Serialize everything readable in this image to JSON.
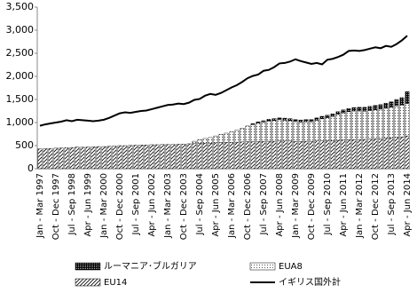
{
  "chart_data": {
    "type": "stacked-bar-line",
    "categories": [
      "Jan - Mar 1997",
      null,
      null,
      "Oct - Dec 1997",
      null,
      null,
      "Jul - Sep 1998",
      null,
      null,
      "Apr - Jun 1999",
      null,
      null,
      "Jan - Mar 2000",
      null,
      null,
      "Oct - Dec 2000",
      null,
      null,
      "Jul - Sep 2001",
      null,
      null,
      "Apr - Jun 2002",
      null,
      null,
      "Jan - Mar 2003",
      null,
      null,
      "Oct - Dec 2003",
      null,
      null,
      "Jul - Sep 2004",
      null,
      null,
      "Apr - Jun 2005",
      null,
      null,
      "Jan - Mar 2006",
      null,
      null,
      "Oct - Dec 2006",
      null,
      null,
      "Jul - Sep 2007",
      null,
      null,
      "Apr - Jun 2008",
      null,
      null,
      "Jan - Mar 2009",
      null,
      null,
      "Oct - Dec 2009",
      null,
      null,
      "Jul - Sep 2010",
      null,
      null,
      "Apr - Jun 2011",
      null,
      null,
      "Jan - Mar 2012",
      null,
      null,
      "Oct - Dec 2012",
      null,
      null,
      "Jul - Sep 2013",
      null,
      null,
      "Apr - Jun 2014"
    ],
    "series": [
      {
        "name": "EU14",
        "kind": "bar",
        "pattern": "hatch",
        "color": "#000000",
        "values": [
          430,
          435,
          440,
          445,
          450,
          455,
          460,
          470,
          465,
          470,
          475,
          480,
          480,
          485,
          490,
          500,
          500,
          505,
          510,
          515,
          515,
          520,
          520,
          525,
          525,
          525,
          530,
          535,
          540,
          545,
          550,
          555,
          555,
          560,
          565,
          570,
          570,
          575,
          580,
          585,
          585,
          590,
          590,
          595,
          595,
          600,
          600,
          600,
          590,
          590,
          595,
          595,
          600,
          600,
          605,
          610,
          615,
          620,
          625,
          630,
          630,
          635,
          640,
          645,
          650,
          660,
          670,
          680,
          690,
          710
        ]
      },
      {
        "name": "EUA8",
        "kind": "bar",
        "pattern": "dots",
        "color": "#000000",
        "values": [
          0,
          0,
          0,
          0,
          0,
          0,
          0,
          0,
          0,
          0,
          0,
          0,
          0,
          0,
          0,
          0,
          0,
          0,
          0,
          0,
          0,
          0,
          0,
          0,
          0,
          0,
          0,
          0,
          0,
          50,
          80,
          100,
          120,
          150,
          180,
          200,
          230,
          260,
          300,
          340,
          370,
          400,
          420,
          440,
          450,
          460,
          450,
          440,
          430,
          420,
          420,
          420,
          450,
          480,
          500,
          520,
          560,
          590,
          610,
          620,
          620,
          610,
          620,
          630,
          640,
          650,
          660,
          680,
          690,
          700
        ]
      },
      {
        "name": "ルーマニア･ブルガリア",
        "kind": "bar",
        "pattern": "checker",
        "color": "#000000",
        "values": [
          0,
          0,
          0,
          0,
          0,
          0,
          0,
          0,
          0,
          0,
          0,
          0,
          0,
          0,
          0,
          0,
          0,
          0,
          0,
          0,
          0,
          0,
          0,
          0,
          0,
          0,
          0,
          0,
          0,
          0,
          0,
          0,
          0,
          0,
          0,
          0,
          0,
          0,
          0,
          0,
          20,
          25,
          30,
          35,
          40,
          40,
          45,
          45,
          45,
          45,
          50,
          50,
          50,
          55,
          55,
          60,
          60,
          65,
          70,
          75,
          80,
          85,
          90,
          95,
          100,
          110,
          120,
          140,
          160,
          260
        ]
      },
      {
        "name": "イギリス国外計",
        "kind": "line",
        "color": "#000000",
        "values": [
          930,
          960,
          980,
          1000,
          1020,
          1050,
          1030,
          1060,
          1050,
          1040,
          1030,
          1040,
          1060,
          1100,
          1150,
          1200,
          1220,
          1210,
          1230,
          1250,
          1260,
          1290,
          1320,
          1350,
          1380,
          1390,
          1410,
          1400,
          1430,
          1490,
          1510,
          1580,
          1620,
          1600,
          1640,
          1700,
          1760,
          1810,
          1880,
          1960,
          2010,
          2040,
          2120,
          2140,
          2200,
          2280,
          2290,
          2320,
          2370,
          2330,
          2300,
          2270,
          2290,
          2260,
          2360,
          2380,
          2420,
          2470,
          2550,
          2560,
          2550,
          2570,
          2600,
          2630,
          2610,
          2660,
          2640,
          2700,
          2780,
          2880
        ]
      }
    ],
    "ylim": [
      0,
      3500
    ],
    "yticks": [
      0,
      500,
      {
        "value": 1000,
        "label": "1,000"
      },
      {
        "value": 1500,
        "label": "1,500"
      },
      {
        "value": 2000,
        "label": "2,000"
      },
      {
        "value": 2500,
        "label": "2,500"
      },
      {
        "value": 3000,
        "label": "3,000"
      },
      {
        "value": 3500,
        "label": "3,500"
      }
    ],
    "grid": false
  }
}
